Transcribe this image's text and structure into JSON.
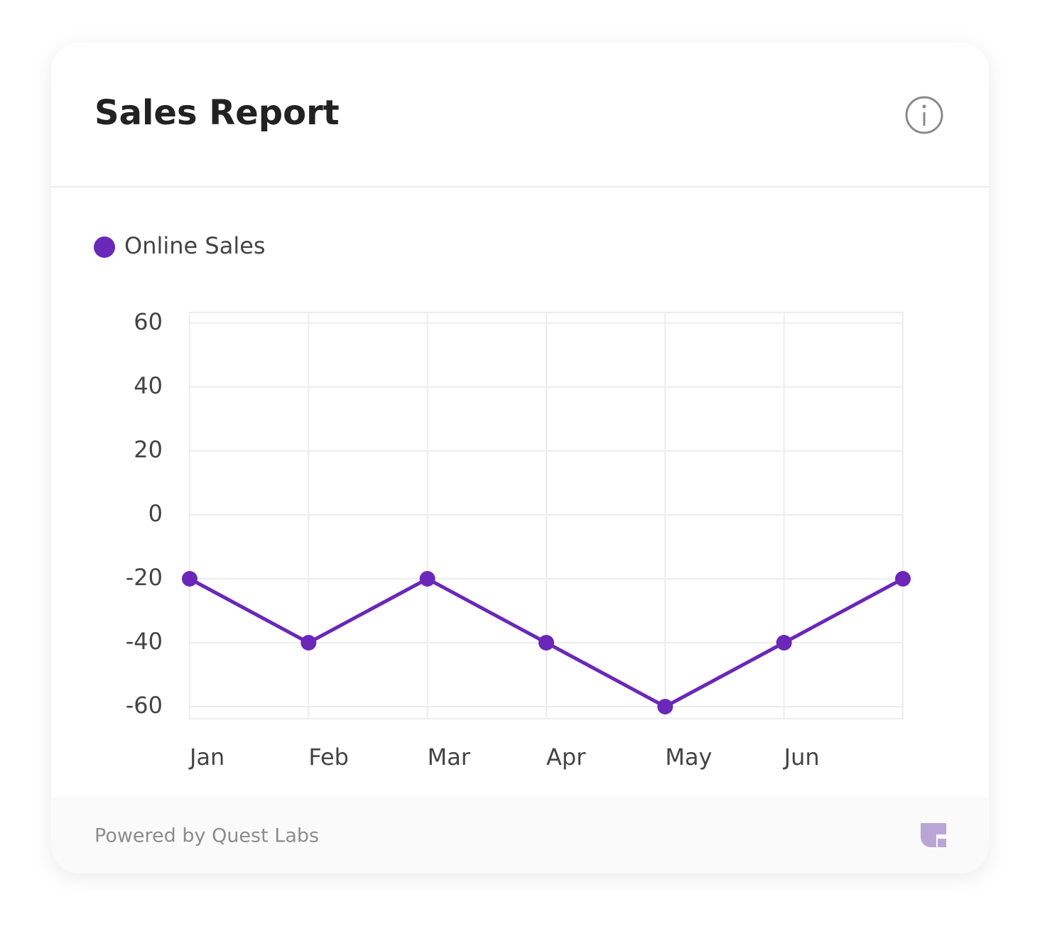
{
  "chart_data": {
    "type": "line",
    "title": "Sales Report",
    "categories": [
      "Jan",
      "Feb",
      "Mar",
      "Apr",
      "May",
      "Jun",
      null
    ],
    "series": [
      {
        "name": "Online Sales",
        "color": "#6b27b8",
        "values": [
          -20,
          -40,
          -20,
          -40,
          -60,
          -40,
          -20
        ]
      }
    ],
    "ylim": [
      -60,
      60
    ],
    "yticks": [
      -60,
      -40,
      -20,
      0,
      20,
      40,
      60
    ],
    "grid": true,
    "legend": "top-left"
  },
  "footer": {
    "text": "Powered by Quest Labs"
  }
}
